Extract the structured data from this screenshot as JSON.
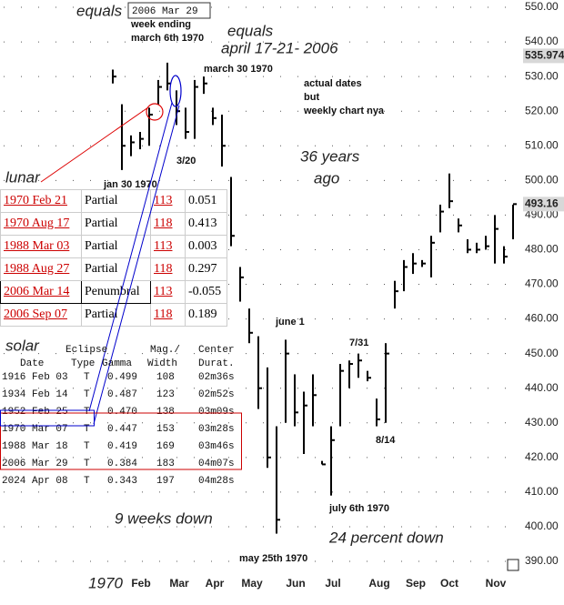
{
  "chart_data": {
    "type": "ohlc",
    "x": [
      1,
      2,
      3,
      4,
      5,
      6,
      7,
      8,
      9,
      10,
      11,
      12,
      13,
      14,
      15,
      16,
      17,
      18,
      19,
      20,
      21,
      22,
      23,
      24,
      25,
      26,
      27,
      28,
      29,
      30,
      31,
      32,
      33,
      34,
      35,
      36,
      37,
      38,
      39,
      40,
      41,
      42,
      43,
      44,
      45
    ],
    "high": [
      532,
      522,
      513,
      514,
      521,
      529,
      534,
      526,
      521,
      529,
      530,
      521,
      519,
      501,
      475,
      463,
      455,
      446,
      429,
      454,
      444,
      439,
      444,
      419,
      429,
      447,
      448,
      450,
      445,
      437,
      453,
      471,
      477,
      479,
      477,
      484,
      493,
      502,
      489,
      483,
      482,
      484,
      490,
      481,
      493
    ],
    "low": [
      528,
      503,
      507,
      509,
      510,
      522,
      526,
      516,
      512,
      512,
      525,
      516,
      504,
      481,
      465,
      453,
      434,
      417,
      398,
      430,
      429,
      421,
      429,
      418,
      409,
      429,
      440,
      443,
      442,
      429,
      430,
      463,
      468,
      473,
      475,
      472,
      485,
      492,
      485,
      479,
      479,
      480,
      476,
      476,
      483
    ],
    "close": [
      530,
      510,
      511,
      512,
      519,
      527,
      528,
      520,
      514,
      527,
      528,
      518,
      510,
      484,
      472,
      456,
      440,
      420,
      402,
      450,
      433,
      435,
      438,
      418,
      425,
      445,
      447,
      448,
      443,
      431,
      450,
      468,
      475,
      476,
      476,
      482,
      491,
      494,
      487,
      480,
      480,
      481,
      486,
      478,
      493.16
    ],
    "color": "#000000",
    "xlim": [
      -11.4,
      45.6
    ],
    "xticks": [
      {
        "value": 0.2,
        "label": "1970"
      },
      {
        "value": 4.1,
        "label": "Feb"
      },
      {
        "value": 8.3,
        "label": "Mar"
      },
      {
        "value": 12.2,
        "label": "Apr"
      },
      {
        "value": 16.3,
        "label": "May"
      },
      {
        "value": 21.1,
        "label": "Jun"
      },
      {
        "value": 25.2,
        "label": "Jul"
      },
      {
        "value": 30.3,
        "label": "Aug"
      },
      {
        "value": 34.3,
        "label": "Sep"
      },
      {
        "value": 38,
        "label": "Oct"
      },
      {
        "value": 43.1,
        "label": "Nov"
      }
    ],
    "ylim": [
      390,
      550
    ],
    "yticks": [
      {
        "value": 390,
        "label": "390.00"
      },
      {
        "value": 400,
        "label": "400.00"
      },
      {
        "value": 410,
        "label": "410.00"
      },
      {
        "value": 420,
        "label": "420.00"
      },
      {
        "value": 430,
        "label": "430.00"
      },
      {
        "value": 440,
        "label": "440.00"
      },
      {
        "value": 450,
        "label": "450.00"
      },
      {
        "value": 460,
        "label": "460.00"
      },
      {
        "value": 470,
        "label": "470.00"
      },
      {
        "value": 480,
        "label": "480.00"
      },
      {
        "value": 490,
        "label": "490.00"
      },
      {
        "value": 500,
        "label": "500.00"
      },
      {
        "value": 510,
        "label": "510.00"
      },
      {
        "value": 520,
        "label": "520.00"
      },
      {
        "value": 530,
        "label": "530.00"
      },
      {
        "value": 540,
        "label": "540.00"
      },
      {
        "value": 550,
        "label": "550.00"
      }
    ],
    "price_markers": [
      {
        "value": 535.974,
        "label": "535.974"
      },
      {
        "value": 493.16,
        "label": "493.16"
      }
    ],
    "grid": true,
    "annotations": [
      "equals",
      "2006 Mar 29",
      "week ending",
      "march 6th 1970",
      "equals",
      "april 17-21- 2006",
      "march 30 1970",
      "actual dates",
      "but",
      "weekly chart nya",
      "lunar",
      "jan 30 1970",
      "3/20",
      "36  years",
      "ago",
      "june 1",
      "7/31",
      "8/14",
      "solar",
      "july 6th 1970",
      "9 weeks down",
      "24 percent down",
      "may 25th 1970"
    ],
    "lunar_table": [
      [
        "1970 Feb 21",
        "Partial",
        "113",
        "0.051"
      ],
      [
        "1970 Aug 17",
        "Partial",
        "118",
        "0.413"
      ],
      [
        "1988 Mar 03",
        "Partial",
        "113",
        "0.003"
      ],
      [
        "1988 Aug 27",
        "Partial",
        "118",
        "0.297"
      ],
      [
        "2006 Mar 14",
        "Penumbral",
        "113",
        "-0.055"
      ],
      [
        "2006 Sep 07",
        "Partial",
        "118",
        "0.189"
      ]
    ],
    "solar_table": {
      "header_top": [
        "Eclipse",
        "Mag./",
        "Center"
      ],
      "header": [
        "Date",
        "Type",
        "Gamma",
        "Width",
        "Durat."
      ],
      "rows": [
        [
          "1916 Feb 03",
          "T",
          "0.499",
          "108",
          "02m36s"
        ],
        [
          "1934 Feb 14",
          "T",
          "0.487",
          "123",
          "02m52s"
        ],
        [
          "1952 Feb 25",
          "T",
          "0.470",
          "138",
          "03m09s"
        ],
        [
          "1970 Mar 07",
          "T",
          "0.447",
          "153",
          "03m28s"
        ],
        [
          "1988 Mar 18",
          "T",
          "0.419",
          "169",
          "03m46s"
        ],
        [
          "2006 Mar 29",
          "T",
          "0.384",
          "183",
          "04m07s"
        ],
        [
          "2024 Apr 08",
          "T",
          "0.343",
          "197",
          "04m28s"
        ]
      ]
    }
  }
}
